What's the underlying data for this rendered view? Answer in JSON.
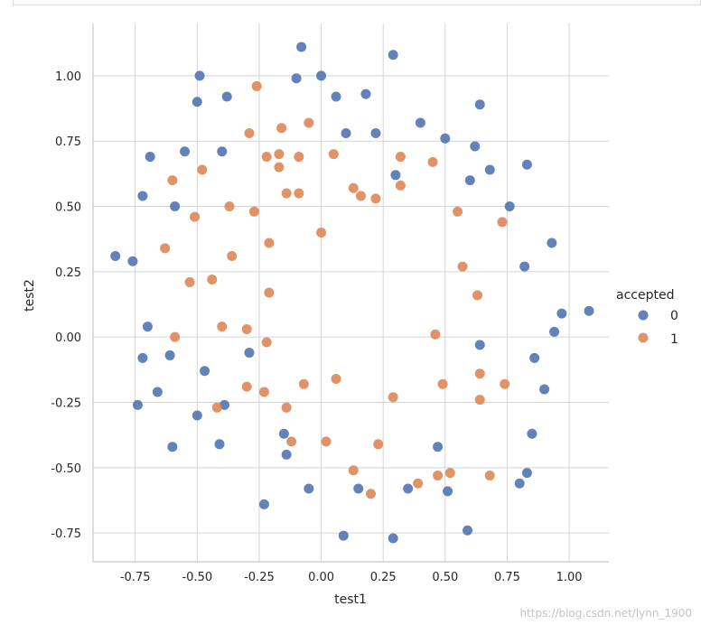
{
  "chart_data": {
    "type": "scatter",
    "xlabel": "test1",
    "ylabel": "test2",
    "xlim": [
      -0.92,
      1.16
    ],
    "ylim": [
      -0.86,
      1.2
    ],
    "xticks": [
      -0.75,
      -0.5,
      -0.25,
      0.0,
      0.25,
      0.5,
      0.75,
      1.0
    ],
    "xtick_labels": [
      "-0.75",
      "-0.50",
      "-0.25",
      "0.00",
      "0.25",
      "0.50",
      "0.75",
      "1.00"
    ],
    "yticks": [
      -0.75,
      -0.5,
      -0.25,
      0.0,
      0.25,
      0.5,
      0.75,
      1.0
    ],
    "ytick_labels": [
      "-0.75",
      "-0.50",
      "-0.25",
      "0.00",
      "0.25",
      "0.50",
      "0.75",
      "1.00"
    ],
    "grid": true,
    "legend": {
      "title": "accepted",
      "placement": "right",
      "entries": [
        {
          "label": "0",
          "color": "#4c72b0"
        },
        {
          "label": "1",
          "color": "#dd8452"
        }
      ]
    },
    "series": [
      {
        "name": "0",
        "color": "#4c72b0",
        "points": [
          [
            -0.08,
            1.11
          ],
          [
            0.29,
            1.08
          ],
          [
            -0.49,
            1.0
          ],
          [
            -0.1,
            0.99
          ],
          [
            0.0,
            1.0
          ],
          [
            -0.38,
            0.92
          ],
          [
            0.06,
            0.92
          ],
          [
            0.18,
            0.93
          ],
          [
            -0.5,
            0.9
          ],
          [
            0.64,
            0.89
          ],
          [
            0.4,
            0.82
          ],
          [
            0.1,
            0.78
          ],
          [
            0.22,
            0.78
          ],
          [
            0.5,
            0.76
          ],
          [
            0.62,
            0.73
          ],
          [
            -0.55,
            0.71
          ],
          [
            -0.4,
            0.71
          ],
          [
            -0.69,
            0.69
          ],
          [
            0.83,
            0.66
          ],
          [
            0.68,
            0.64
          ],
          [
            0.3,
            0.62
          ],
          [
            0.6,
            0.6
          ],
          [
            -0.72,
            0.54
          ],
          [
            0.76,
            0.5
          ],
          [
            -0.59,
            0.5
          ],
          [
            0.93,
            0.36
          ],
          [
            -0.83,
            0.31
          ],
          [
            -0.76,
            0.29
          ],
          [
            0.82,
            0.27
          ],
          [
            0.97,
            0.09
          ],
          [
            1.08,
            0.1
          ],
          [
            -0.7,
            0.04
          ],
          [
            0.94,
            0.02
          ],
          [
            0.64,
            -0.03
          ],
          [
            -0.61,
            -0.07
          ],
          [
            -0.72,
            -0.08
          ],
          [
            0.86,
            -0.08
          ],
          [
            -0.47,
            -0.13
          ],
          [
            0.9,
            -0.2
          ],
          [
            -0.66,
            -0.21
          ],
          [
            -0.39,
            -0.26
          ],
          [
            -0.74,
            -0.26
          ],
          [
            -0.5,
            -0.3
          ],
          [
            -0.29,
            -0.06
          ],
          [
            0.85,
            -0.37
          ],
          [
            -0.15,
            -0.37
          ],
          [
            -0.6,
            -0.42
          ],
          [
            -0.41,
            -0.41
          ],
          [
            0.47,
            -0.42
          ],
          [
            -0.14,
            -0.45
          ],
          [
            0.83,
            -0.52
          ],
          [
            0.8,
            -0.56
          ],
          [
            0.15,
            -0.58
          ],
          [
            -0.05,
            -0.58
          ],
          [
            0.35,
            -0.58
          ],
          [
            0.51,
            -0.59
          ],
          [
            -0.23,
            -0.64
          ],
          [
            0.59,
            -0.74
          ],
          [
            0.09,
            -0.76
          ],
          [
            0.29,
            -0.77
          ]
        ]
      },
      {
        "name": "1",
        "color": "#dd8452",
        "points": [
          [
            -0.26,
            0.96
          ],
          [
            -0.05,
            0.82
          ],
          [
            -0.16,
            0.8
          ],
          [
            -0.29,
            0.78
          ],
          [
            -0.17,
            0.7
          ],
          [
            -0.22,
            0.69
          ],
          [
            -0.09,
            0.69
          ],
          [
            0.05,
            0.7
          ],
          [
            0.32,
            0.69
          ],
          [
            0.45,
            0.67
          ],
          [
            -0.17,
            0.65
          ],
          [
            -0.48,
            0.64
          ],
          [
            -0.6,
            0.6
          ],
          [
            0.32,
            0.58
          ],
          [
            0.13,
            0.57
          ],
          [
            -0.14,
            0.55
          ],
          [
            -0.09,
            0.55
          ],
          [
            0.16,
            0.54
          ],
          [
            0.22,
            0.53
          ],
          [
            0.55,
            0.48
          ],
          [
            -0.37,
            0.5
          ],
          [
            -0.27,
            0.48
          ],
          [
            -0.51,
            0.46
          ],
          [
            0.73,
            0.44
          ],
          [
            0.0,
            0.4
          ],
          [
            -0.21,
            0.36
          ],
          [
            -0.63,
            0.34
          ],
          [
            -0.36,
            0.31
          ],
          [
            0.57,
            0.27
          ],
          [
            -0.44,
            0.22
          ],
          [
            -0.53,
            0.21
          ],
          [
            -0.21,
            0.17
          ],
          [
            0.63,
            0.16
          ],
          [
            -0.4,
            0.04
          ],
          [
            -0.3,
            0.03
          ],
          [
            0.46,
            0.01
          ],
          [
            -0.59,
            0.0
          ],
          [
            -0.22,
            -0.02
          ],
          [
            0.64,
            -0.14
          ],
          [
            0.74,
            -0.18
          ],
          [
            0.06,
            -0.16
          ],
          [
            -0.07,
            -0.18
          ],
          [
            0.49,
            -0.18
          ],
          [
            -0.3,
            -0.19
          ],
          [
            -0.23,
            -0.21
          ],
          [
            0.29,
            -0.23
          ],
          [
            0.64,
            -0.24
          ],
          [
            -0.42,
            -0.27
          ],
          [
            -0.14,
            -0.27
          ],
          [
            -0.12,
            -0.4
          ],
          [
            0.02,
            -0.4
          ],
          [
            0.23,
            -0.41
          ],
          [
            0.13,
            -0.51
          ],
          [
            0.52,
            -0.52
          ],
          [
            0.47,
            -0.53
          ],
          [
            0.68,
            -0.53
          ],
          [
            0.39,
            -0.56
          ],
          [
            0.2,
            -0.6
          ]
        ]
      }
    ]
  },
  "watermark": "https://blog.csdn.net/lynn_1900"
}
